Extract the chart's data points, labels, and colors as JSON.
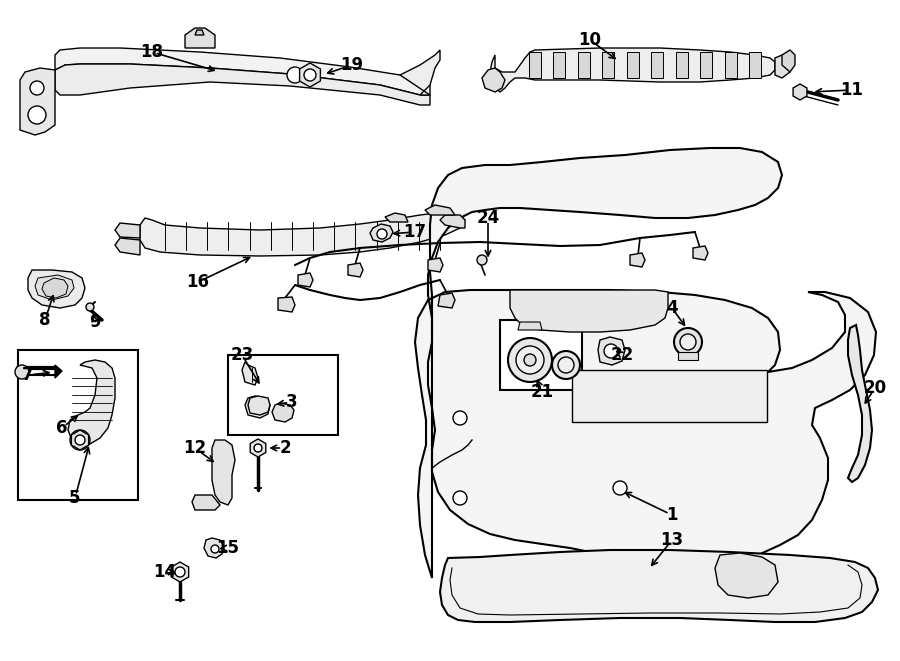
{
  "bg": "#ffffff",
  "lc": "#000000",
  "lw": 1.0,
  "fig_w": 9.0,
  "fig_h": 6.61,
  "dpi": 100
}
